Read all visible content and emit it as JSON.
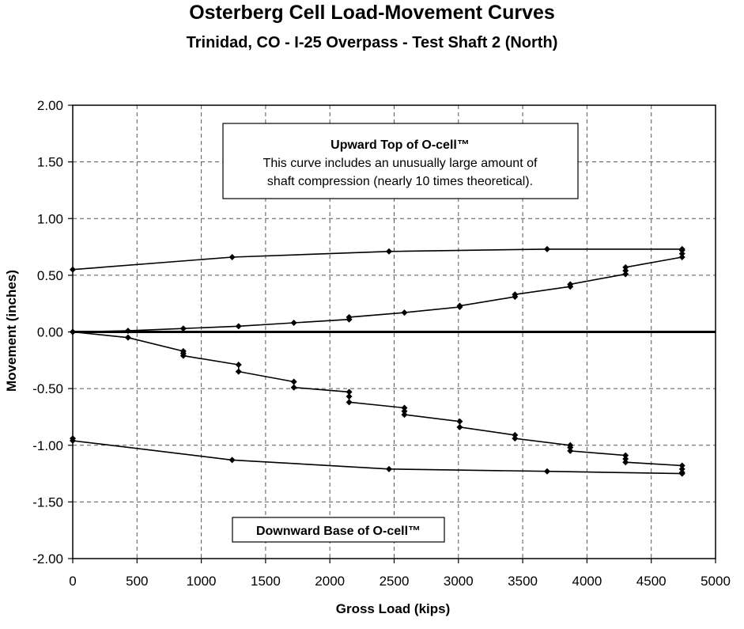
{
  "chart_data": {
    "type": "line",
    "title": "Osterberg Cell Load-Movement Curves",
    "subtitle": "Trinidad, CO - I-25 Overpass - Test Shaft 2 (North)",
    "xlabel": "Gross Load  (kips)",
    "ylabel": "Movement (inches)",
    "xlim": [
      0,
      5000
    ],
    "ylim": [
      -2.0,
      2.0
    ],
    "xticks": [
      "0",
      "500",
      "1000",
      "1500",
      "2000",
      "2500",
      "3000",
      "3500",
      "4000",
      "4500",
      "5000"
    ],
    "yticks": [
      "2.00",
      "1.50",
      "1.00",
      "0.50",
      "0.00",
      "-0.50",
      "-1.00",
      "-1.50",
      "-2.00"
    ],
    "grid": true,
    "annotations": [
      {
        "title": "Upward Top of O-cell™",
        "lines": [
          "This curve includes an unusually large amount of",
          "shaft compression (nearly 10 times theoretical)."
        ]
      },
      {
        "title": "Downward Base of O-cell™",
        "lines": []
      }
    ],
    "series": [
      {
        "x": [
          0,
          430,
          860,
          1290,
          1720,
          2150,
          2150,
          2580,
          3010,
          3010,
          3440,
          3440,
          3870,
          3870,
          4300,
          4300,
          4300,
          4740,
          4740,
          4740
        ],
        "y": [
          0.0,
          0.01,
          0.03,
          0.05,
          0.08,
          0.11,
          0.13,
          0.17,
          0.22,
          0.23,
          0.31,
          0.33,
          0.4,
          0.42,
          0.51,
          0.54,
          0.57,
          0.66,
          0.69,
          0.72
        ]
      },
      {
        "x": [
          4740,
          3690,
          2460,
          1240,
          0
        ],
        "y": [
          0.73,
          0.73,
          0.71,
          0.66,
          0.55
        ]
      },
      {
        "x": [
          0,
          430,
          860,
          860,
          860,
          1290,
          1290,
          1720,
          1720,
          2150,
          2150,
          2150,
          2580,
          2580,
          2580,
          3010,
          3010,
          3440,
          3440,
          3870,
          3870,
          3870,
          4300,
          4300,
          4300,
          4740,
          4740
        ],
        "y": [
          0.0,
          -0.05,
          -0.17,
          -0.19,
          -0.21,
          -0.29,
          -0.35,
          -0.44,
          -0.49,
          -0.53,
          -0.57,
          -0.62,
          -0.67,
          -0.7,
          -0.73,
          -0.79,
          -0.84,
          -0.91,
          -0.94,
          -1.0,
          -1.02,
          -1.05,
          -1.09,
          -1.12,
          -1.15,
          -1.18,
          -1.21
        ]
      },
      {
        "x": [
          4740,
          4740,
          3690,
          2460,
          1240,
          0,
          0
        ],
        "y": [
          -1.24,
          -1.25,
          -1.23,
          -1.21,
          -1.13,
          -0.96,
          -0.94
        ]
      }
    ]
  }
}
